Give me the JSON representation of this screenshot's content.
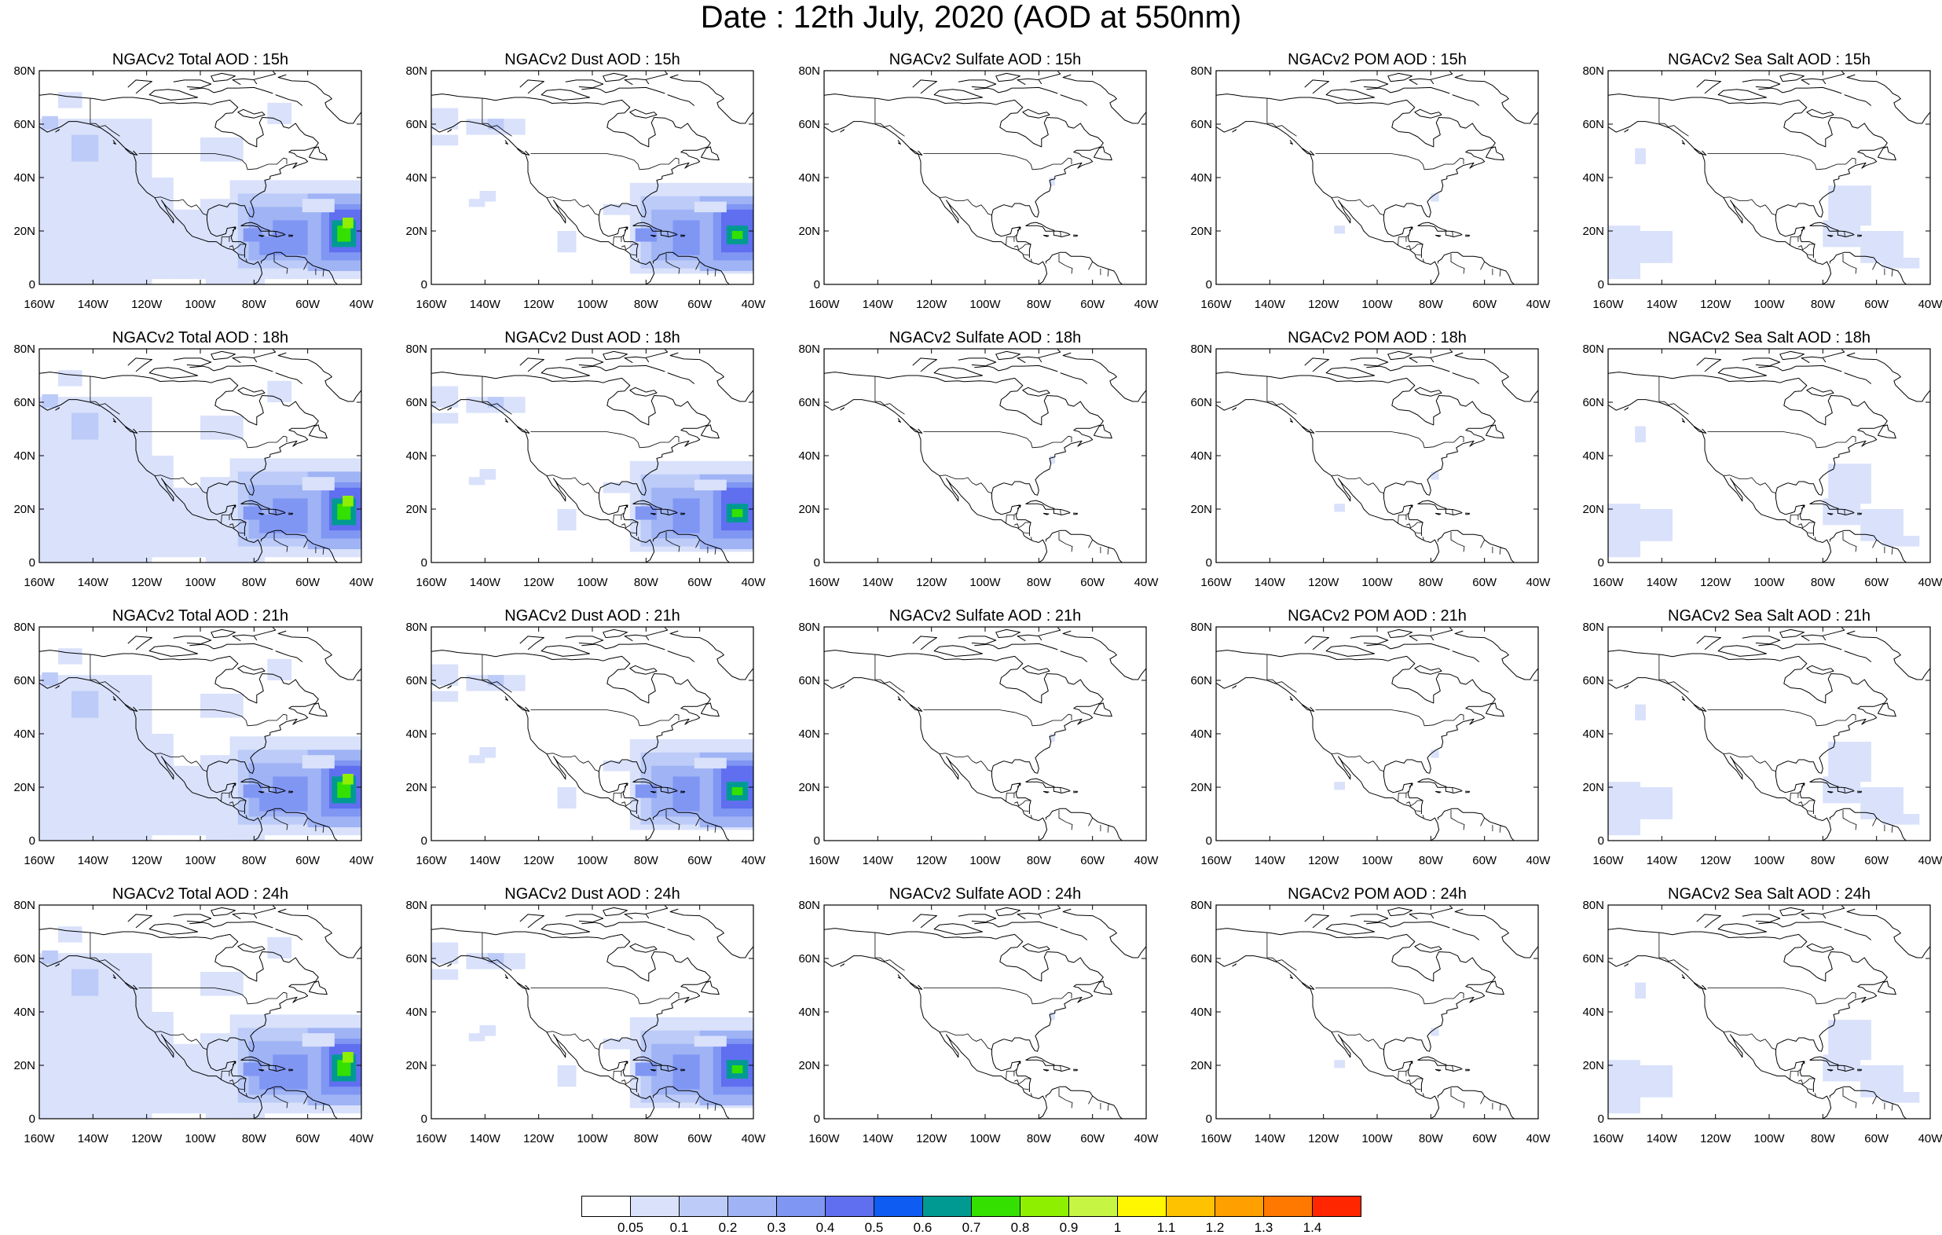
{
  "title": "Date : 12th July, 2020 (AOD at 550nm)",
  "rows": [
    [
      "NGACv2 Total AOD : 15h",
      "NGACv2 Dust AOD : 15h",
      "NGACv2 Sulfate AOD : 15h",
      "NGACv2 POM AOD : 15h",
      "NGACv2 Sea Salt AOD : 15h"
    ],
    [
      "NGACv2 Total AOD : 18h",
      "NGACv2 Dust AOD : 18h",
      "NGACv2 Sulfate AOD : 18h",
      "NGACv2 POM AOD : 18h",
      "NGACv2 Sea Salt AOD : 18h"
    ],
    [
      "NGACv2 Total AOD : 21h",
      "NGACv2 Dust AOD : 21h",
      "NGACv2 Sulfate AOD : 21h",
      "NGACv2 POM AOD : 21h",
      "NGACv2 Sea Salt AOD : 21h"
    ],
    [
      "NGACv2 Total AOD : 24h",
      "NGACv2 Dust AOD : 24h",
      "NGACv2 Sulfate AOD : 24h",
      "NGACv2 POM AOD : 24h",
      "NGACv2 Sea Salt  AOD : 24h"
    ]
  ],
  "lat_ticks": [
    "80N",
    "60N",
    "40N",
    "20N",
    "0"
  ],
  "lon_ticks": [
    "160W",
    "140W",
    "120W",
    "100W",
    "80W",
    "60W",
    "40W"
  ],
  "map_extent": {
    "lon": [
      -160,
      -40
    ],
    "lat": [
      0,
      80
    ]
  },
  "colorbar": {
    "colors": [
      "#ffffff",
      "#d9e1fb",
      "#bccbf7",
      "#9fb3f5",
      "#8096f3",
      "#5f6ff0",
      "#0e5cf2",
      "#009a93",
      "#33e000",
      "#8ef000",
      "#c6f544",
      "#fff700",
      "#ffc200",
      "#ffa000",
      "#ff7800",
      "#ff2600"
    ],
    "labels": [
      "0.05",
      "0.1",
      "0.2",
      "0.3",
      "0.4",
      "0.5",
      "0.6",
      "0.7",
      "0.8",
      "0.9",
      "1",
      "1.1",
      "1.2",
      "1.3",
      "1.4"
    ]
  }
}
